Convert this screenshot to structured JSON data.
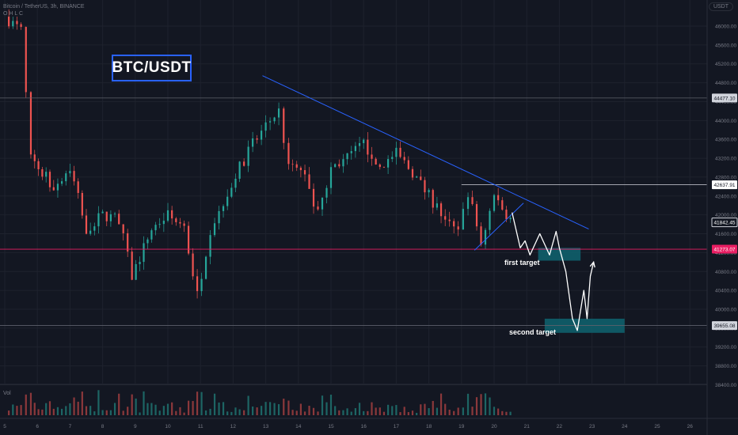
{
  "header": {
    "symbol_line": "Bitcoin / TetherUS, 3h, BINANCE",
    "sub_line": "O H L C"
  },
  "currency_button": "USDT",
  "title_box": "BTC/USDT",
  "volume_label": "Vol",
  "annotations": {
    "first_target": "first target",
    "second_target": "second target"
  },
  "price_tags": [
    {
      "label": "44477.10",
      "price": 44477.1,
      "style": "gray"
    },
    {
      "label": "42637.91",
      "price": 42637.91,
      "style": "white"
    },
    {
      "label": "41842.45",
      "price": 41842.45,
      "style": "dark"
    },
    {
      "label": "41273.07",
      "price": 41273.07,
      "style": "pink"
    },
    {
      "label": "39655.08",
      "price": 39655.08,
      "style": "gray"
    }
  ],
  "colors": {
    "background": "#131722",
    "bull": "#26a69a",
    "bear": "#ef5350",
    "trendline": "#2962ff",
    "support": "#e91e63",
    "target_zone": "#0f5f6c",
    "grid": "#1e222d",
    "axis_text": "#787b86"
  },
  "chart_data": {
    "type": "candlestick",
    "symbol": "BTC/USDT",
    "timeframe": "3h",
    "exchange": "BINANCE",
    "y_ticks": [
      46000,
      45600,
      45200,
      44800,
      44400,
      44000,
      43600,
      43200,
      42800,
      42400,
      42000,
      41600,
      41200,
      40800,
      40400,
      40000,
      39600,
      39200,
      38800,
      38400
    ],
    "x_ticks": [
      "5",
      "6",
      "7",
      "8",
      "9",
      "10",
      "11",
      "12",
      "13",
      "14",
      "15",
      "16",
      "17",
      "18",
      "19",
      "20",
      "21",
      "22",
      "23",
      "24",
      "25",
      "26"
    ],
    "ylim": [
      38100,
      46400
    ],
    "key_levels": {
      "resistance_line": 44477.1,
      "range_high": 42637.91,
      "last_price": 41842.45,
      "support": 41273.07,
      "target_2": 39655.08
    },
    "approx_close_path": [
      {
        "day": 5.0,
        "price": 46200
      },
      {
        "day": 5.5,
        "price": 45900
      },
      {
        "day": 5.8,
        "price": 43200
      },
      {
        "day": 6.5,
        "price": 42600
      },
      {
        "day": 7.0,
        "price": 43000
      },
      {
        "day": 7.5,
        "price": 41700
      },
      {
        "day": 8.0,
        "price": 42000
      },
      {
        "day": 8.5,
        "price": 41900
      },
      {
        "day": 8.9,
        "price": 40700
      },
      {
        "day": 9.5,
        "price": 41700
      },
      {
        "day": 10.0,
        "price": 42000
      },
      {
        "day": 10.5,
        "price": 41700
      },
      {
        "day": 10.9,
        "price": 40300
      },
      {
        "day": 11.3,
        "price": 41700
      },
      {
        "day": 11.7,
        "price": 42300
      },
      {
        "day": 12.2,
        "price": 43000
      },
      {
        "day": 12.6,
        "price": 43500
      },
      {
        "day": 13.0,
        "price": 43900
      },
      {
        "day": 13.4,
        "price": 44200
      },
      {
        "day": 13.7,
        "price": 43000
      },
      {
        "day": 14.2,
        "price": 42900
      },
      {
        "day": 14.6,
        "price": 42000
      },
      {
        "day": 15.0,
        "price": 43000
      },
      {
        "day": 15.5,
        "price": 43200
      },
      {
        "day": 16.0,
        "price": 43500
      },
      {
        "day": 16.5,
        "price": 43000
      },
      {
        "day": 17.0,
        "price": 43300
      },
      {
        "day": 17.5,
        "price": 42900
      },
      {
        "day": 18.0,
        "price": 42400
      },
      {
        "day": 18.5,
        "price": 41900
      },
      {
        "day": 18.9,
        "price": 41600
      },
      {
        "day": 19.2,
        "price": 42500
      },
      {
        "day": 19.6,
        "price": 41400
      },
      {
        "day": 20.0,
        "price": 42400
      },
      {
        "day": 20.5,
        "price": 41900
      }
    ],
    "trendlines": [
      {
        "name": "descending resistance",
        "from": {
          "day": 12.9,
          "price": 44950
        },
        "to": {
          "day": 22.9,
          "price": 41700
        }
      },
      {
        "name": "rising support",
        "from": {
          "day": 19.4,
          "price": 41250
        },
        "to": {
          "day": 20.9,
          "price": 42250
        }
      }
    ],
    "target_zones": [
      {
        "label": "first target",
        "day_from": 21.35,
        "day_to": 22.65,
        "price_from": 41030,
        "price_to": 41300
      },
      {
        "label": "second target",
        "day_from": 21.55,
        "day_to": 24.0,
        "price_from": 39500,
        "price_to": 39800
      }
    ],
    "projected_path": [
      {
        "day": 20.55,
        "price": 42050
      },
      {
        "day": 20.8,
        "price": 41300
      },
      {
        "day": 20.95,
        "price": 41450
      },
      {
        "day": 21.1,
        "price": 41150
      },
      {
        "day": 21.4,
        "price": 41600
      },
      {
        "day": 21.7,
        "price": 41150
      },
      {
        "day": 21.9,
        "price": 41650
      },
      {
        "day": 22.0,
        "price": 41300
      },
      {
        "day": 22.2,
        "price": 40800
      },
      {
        "day": 22.4,
        "price": 39800
      },
      {
        "day": 22.55,
        "price": 39550
      },
      {
        "day": 22.75,
        "price": 40400
      },
      {
        "day": 22.85,
        "price": 39800
      },
      {
        "day": 22.95,
        "price": 40700
      },
      {
        "day": 23.05,
        "price": 41000
      }
    ]
  }
}
